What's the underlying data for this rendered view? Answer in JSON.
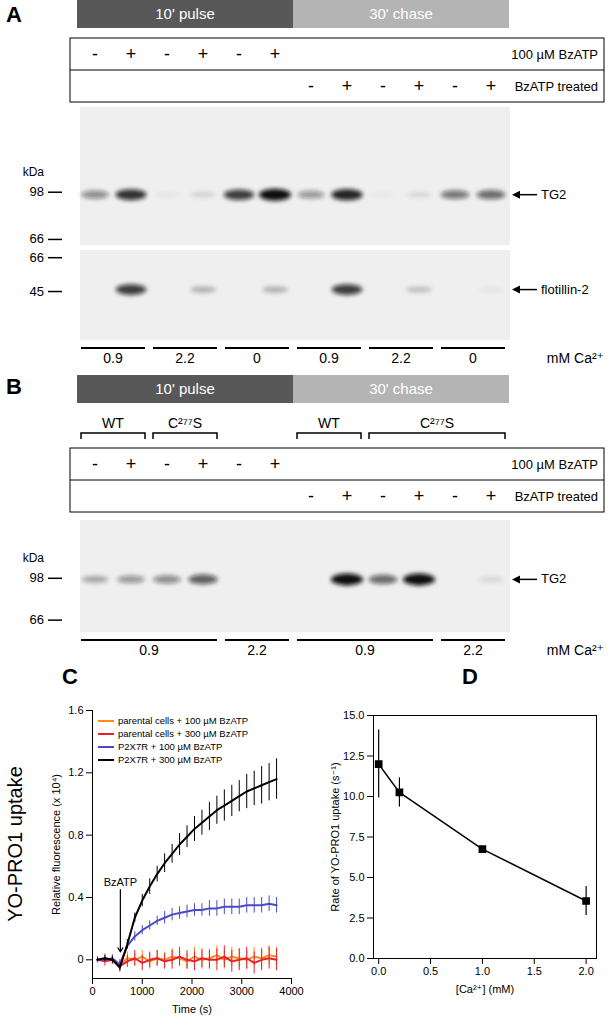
{
  "blot_panels": [
    {
      "label": "A",
      "phases": [
        {
          "text": "10' pulse",
          "lanes": [
            0,
            5
          ]
        },
        {
          "text": "30' chase",
          "lanes": [
            6,
            11
          ]
        }
      ],
      "lane_groups": [],
      "treatment_rows": [
        {
          "label": "100 µM BzATP",
          "marks": [
            "-",
            "+",
            "-",
            "+",
            "-",
            "+",
            null,
            null,
            null,
            null,
            null,
            null
          ]
        },
        {
          "label": "BzATP treated",
          "marks": [
            null,
            null,
            null,
            null,
            null,
            null,
            "-",
            "+",
            "-",
            "+",
            "-",
            "+"
          ]
        }
      ],
      "kda_label": "kDa",
      "blots": [
        {
          "name": "TG2",
          "kda_range": [
            200,
            63
          ],
          "markers": [
            98,
            66
          ],
          "band_kda": 96,
          "intensity": [
            0.45,
            0.85,
            0.05,
            0.12,
            0.8,
            1.0,
            0.4,
            0.9,
            0.03,
            0.1,
            0.55,
            0.6
          ]
        },
        {
          "name": "flotillin-2",
          "kda_range": [
            72,
            26
          ],
          "markers": [
            66,
            45
          ],
          "band_kda": 46,
          "intensity": [
            0,
            0.8,
            0,
            0.25,
            0,
            0.25,
            0,
            0.8,
            0,
            0.2,
            0,
            0.05
          ]
        }
      ],
      "ca_label": "mM Ca²⁺",
      "ca_groups": [
        {
          "text": "0.9",
          "lanes": [
            0,
            1
          ]
        },
        {
          "text": "2.2",
          "lanes": [
            2,
            3
          ]
        },
        {
          "text": "0",
          "lanes": [
            4,
            5
          ]
        },
        {
          "text": "0.9",
          "lanes": [
            6,
            7
          ]
        },
        {
          "text": "2.2",
          "lanes": [
            8,
            9
          ]
        },
        {
          "text": "0",
          "lanes": [
            10,
            11
          ]
        }
      ]
    },
    {
      "label": "B",
      "phases": [
        {
          "text": "10' pulse",
          "lanes": [
            0,
            5
          ]
        },
        {
          "text": "30' chase",
          "lanes": [
            6,
            11
          ]
        }
      ],
      "lane_groups": [
        {
          "text": "WT",
          "lanes": [
            0,
            1
          ]
        },
        {
          "text": "C²⁷⁷S",
          "lanes": [
            2,
            3
          ]
        },
        {
          "text": "WT",
          "lanes": [
            6,
            7
          ]
        },
        {
          "text": "C²⁷⁷S",
          "lanes": [
            8,
            11
          ]
        }
      ],
      "treatment_rows": [
        {
          "label": "100 µM BzATP",
          "marks": [
            "-",
            "+",
            "-",
            "+",
            "-",
            "+",
            null,
            null,
            null,
            null,
            null,
            null
          ]
        },
        {
          "label": "BzATP treated",
          "marks": [
            null,
            null,
            null,
            null,
            null,
            null,
            "-",
            "+",
            "-",
            "+",
            "-",
            "+"
          ]
        }
      ],
      "kda_label": "kDa",
      "blots": [
        {
          "name": "TG2",
          "kda_range": [
            170,
            59
          ],
          "markers": [
            98,
            66
          ],
          "band_kda": 97,
          "intensity": [
            0.3,
            0.4,
            0.45,
            0.65,
            0,
            0,
            0,
            1.0,
            0.6,
            1.0,
            0,
            0.1
          ]
        }
      ],
      "ca_label": "mM Ca²⁺",
      "ca_groups": [
        {
          "text": "0.9",
          "lanes": [
            0,
            3
          ]
        },
        {
          "text": "2.2",
          "lanes": [
            4,
            5
          ]
        },
        {
          "text": "0.9",
          "lanes": [
            6,
            9
          ]
        },
        {
          "text": "2.2",
          "lanes": [
            10,
            11
          ]
        }
      ]
    }
  ],
  "chart_data": [
    {
      "type": "line",
      "panel": "C",
      "side_label": "YO-PRO1 uptake",
      "x_label": "Time (s)",
      "y_label": "Relative fluorescence (x 10⁴)",
      "xlim": [
        0,
        4000
      ],
      "xticks": [
        0,
        1000,
        2000,
        3000,
        4000
      ],
      "ylim": [
        -0.12,
        1.6
      ],
      "yticks": [
        0,
        0.4,
        0.8,
        1.2,
        1.6
      ],
      "legend": "top-left",
      "annotations": [
        {
          "text": "BzATP",
          "x": 560,
          "y": 0.45,
          "y_to": 0.05
        }
      ],
      "x": [
        100,
        250,
        400,
        550,
        700,
        850,
        1000,
        1150,
        1300,
        1450,
        1600,
        1750,
        1900,
        2050,
        2200,
        2350,
        2500,
        2650,
        2800,
        2950,
        3100,
        3250,
        3400,
        3550,
        3700
      ],
      "series": [
        {
          "name": "parental cells + 100 µM BzATP",
          "color": "#ff8c1a",
          "values": [
            0,
            0.01,
            0,
            -0.03,
            0.01,
            0,
            0.02,
            -0.01,
            0.01,
            0,
            0.02,
            0.01,
            -0.01,
            0.02,
            0,
            0.01,
            0.03,
            0,
            0.02,
            0.01,
            0,
            0.02,
            0.01,
            0.03,
            0.02
          ],
          "errors": [
            0.02,
            0.03,
            0.03,
            0.03,
            0.04,
            0.04,
            0.04,
            0.05,
            0.05,
            0.05,
            0.05,
            0.05,
            0.05,
            0.06,
            0.06,
            0.06,
            0.06,
            0.06,
            0.06,
            0.06,
            0.06,
            0.06,
            0.06,
            0.06,
            0.06
          ]
        },
        {
          "name": "parental cells + 300 µM BzATP",
          "color": "#e8202a",
          "values": [
            0,
            -0.01,
            0,
            -0.04,
            -0.01,
            0.01,
            -0.02,
            0,
            0.01,
            -0.01,
            0,
            0.02,
            0,
            -0.01,
            0.01,
            0,
            0,
            0.02,
            -0.01,
            0,
            0.01,
            -0.02,
            0,
            0.01,
            0
          ],
          "errors": [
            0.02,
            0.03,
            0.03,
            0.04,
            0.04,
            0.05,
            0.05,
            0.05,
            0.05,
            0.05,
            0.06,
            0.06,
            0.06,
            0.06,
            0.06,
            0.06,
            0.07,
            0.07,
            0.07,
            0.07,
            0.07,
            0.07,
            0.07,
            0.07,
            0.07
          ]
        },
        {
          "name": "P2X7R + 100 µM BzATP",
          "color": "#4a4ac8",
          "values": [
            0,
            0,
            0.01,
            -0.03,
            0.09,
            0.15,
            0.19,
            0.22,
            0.25,
            0.27,
            0.29,
            0.3,
            0.31,
            0.32,
            0.32,
            0.33,
            0.33,
            0.34,
            0.34,
            0.34,
            0.35,
            0.35,
            0.35,
            0.36,
            0.35
          ],
          "errors": [
            0.01,
            0.01,
            0.02,
            0.02,
            0.02,
            0.03,
            0.03,
            0.03,
            0.03,
            0.04,
            0.04,
            0.04,
            0.04,
            0.04,
            0.04,
            0.05,
            0.05,
            0.05,
            0.05,
            0.05,
            0.05,
            0.05,
            0.05,
            0.05,
            0.05
          ]
        },
        {
          "name": "P2X7R + 300 µM BzATP",
          "color": "#000000",
          "values": [
            0,
            0.01,
            0,
            -0.05,
            0.1,
            0.27,
            0.38,
            0.47,
            0.55,
            0.62,
            0.68,
            0.74,
            0.79,
            0.84,
            0.88,
            0.92,
            0.96,
            0.99,
            1.02,
            1.05,
            1.08,
            1.1,
            1.12,
            1.14,
            1.16
          ],
          "errors": [
            0.01,
            0.02,
            0.02,
            0.02,
            0.03,
            0.03,
            0.04,
            0.05,
            0.05,
            0.06,
            0.06,
            0.07,
            0.07,
            0.08,
            0.08,
            0.09,
            0.09,
            0.1,
            0.1,
            0.1,
            0.11,
            0.11,
            0.12,
            0.12,
            0.13
          ]
        }
      ]
    },
    {
      "type": "line",
      "panel": "D",
      "marker": "square",
      "color": "#000000",
      "x_label": "[Ca²⁺] (mM)",
      "y_label": "Rate of YO-PRO1 uptake (s⁻¹)",
      "xlim": [
        -0.05,
        2.1
      ],
      "xticks": [
        {
          "value": 0,
          "label": "0.0"
        },
        0.5,
        {
          "value": 1,
          "label": "1.0"
        },
        1.5,
        {
          "value": 2,
          "label": "2.0"
        }
      ],
      "ylim": [
        0,
        15
      ],
      "yticks": [
        {
          "value": 0,
          "label": "0.0"
        },
        2.5,
        {
          "value": 5,
          "label": "5.0"
        },
        7.5,
        {
          "value": 10,
          "label": "10.0"
        },
        12.5,
        {
          "value": 15,
          "label": "15.0"
        }
      ],
      "x": [
        0,
        0.2,
        1.0,
        2.0
      ],
      "values": [
        12.0,
        10.25,
        6.75,
        3.55
      ],
      "errors": [
        2.1,
        0.9,
        0.1,
        0.9
      ]
    }
  ]
}
